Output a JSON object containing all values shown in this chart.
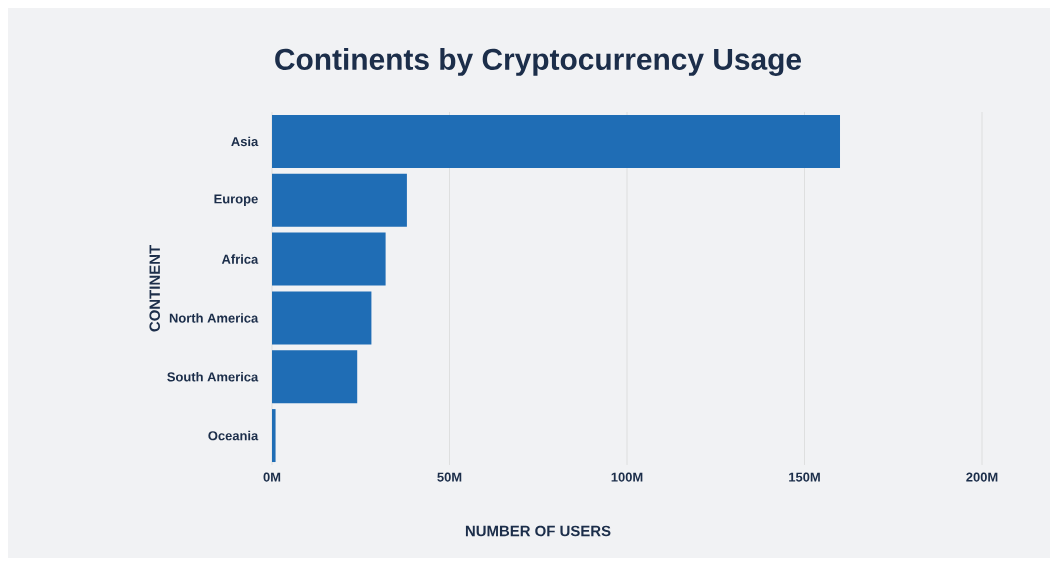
{
  "chart_data": {
    "type": "bar",
    "orientation": "horizontal",
    "title": "Continents by Cryptocurrency Usage",
    "xlabel": "NUMBER OF USERS",
    "ylabel": "CONTINENT",
    "categories": [
      "Asia",
      "Europe",
      "Africa",
      "North America",
      "South America",
      "Oceania"
    ],
    "values": [
      160,
      38,
      32,
      28,
      24,
      1
    ],
    "color": "#1f6db5",
    "xlim": [
      0,
      200
    ],
    "xticks": [
      {
        "value": 0,
        "label": "0M"
      },
      {
        "value": 50,
        "label": "50M"
      },
      {
        "value": 100,
        "label": "100M"
      },
      {
        "value": 150,
        "label": "150M"
      },
      {
        "value": 200,
        "label": "200M"
      }
    ],
    "grid": "x"
  }
}
